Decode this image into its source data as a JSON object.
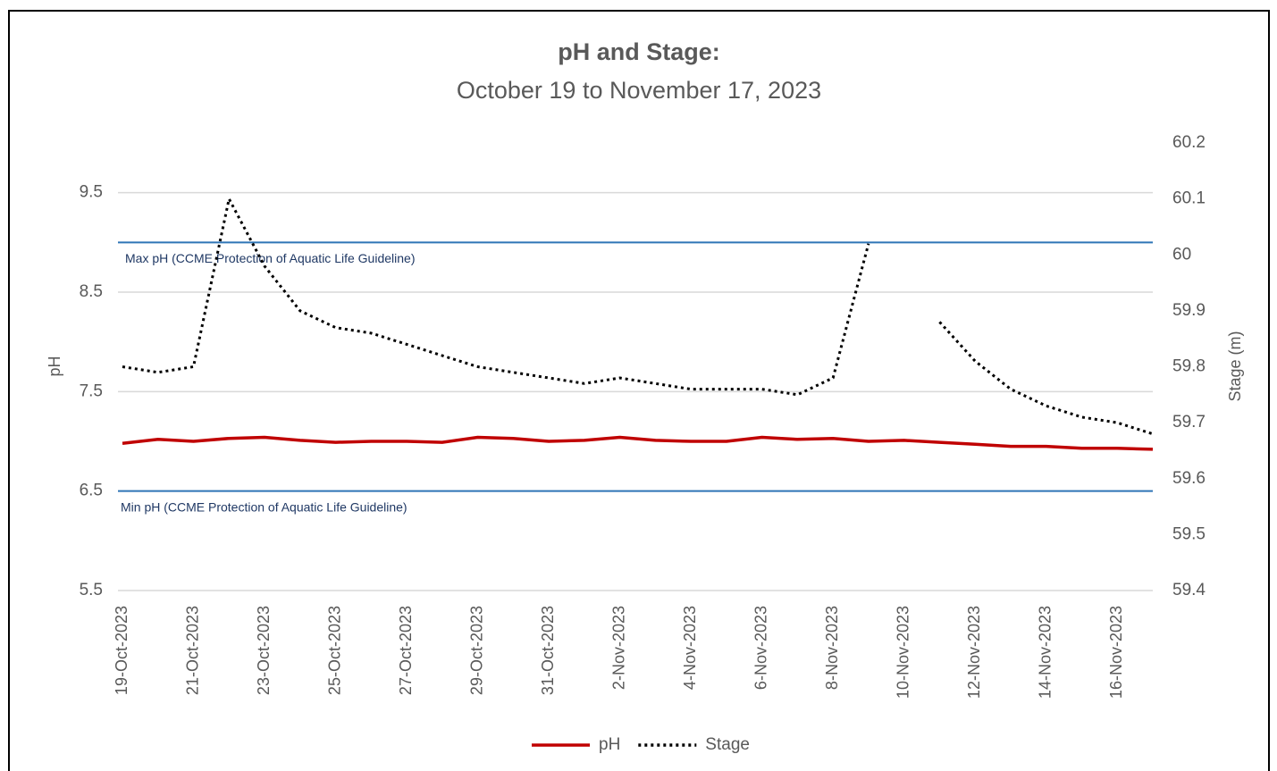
{
  "chart_data": {
    "type": "line",
    "title": "pH and Stage:",
    "subtitle": "October 19 to November 17, 2023",
    "y_label": "pH",
    "y2_label": "Stage (m)",
    "categories": [
      "19-Oct-2023",
      null,
      "21-Oct-2023",
      null,
      "23-Oct-2023",
      null,
      "25-Oct-2023",
      null,
      "27-Oct-2023",
      null,
      "29-Oct-2023",
      null,
      "31-Oct-2023",
      null,
      "2-Nov-2023",
      null,
      "4-Nov-2023",
      null,
      "6-Nov-2023",
      null,
      "8-Nov-2023",
      null,
      "10-Nov-2023",
      null,
      "12-Nov-2023",
      null,
      "14-Nov-2023",
      null,
      "16-Nov-2023",
      null
    ],
    "series": [
      {
        "name": "pH",
        "color": "#c00000",
        "axis": "y",
        "line_style": "solid",
        "values": [
          6.98,
          7.02,
          7.0,
          7.03,
          7.04,
          7.01,
          6.99,
          7.0,
          7.0,
          6.99,
          7.04,
          7.03,
          7.0,
          7.01,
          7.04,
          7.01,
          7.0,
          7.0,
          7.04,
          7.02,
          7.03,
          7.0,
          7.01,
          6.99,
          6.97,
          6.95,
          6.95,
          6.93,
          6.93,
          6.92
        ]
      },
      {
        "name": "Stage",
        "color": "#000000",
        "axis": "y2",
        "line_style": "dotted",
        "values": [
          59.8,
          59.79,
          59.8,
          60.1,
          59.98,
          59.9,
          59.87,
          59.86,
          59.84,
          59.82,
          59.8,
          59.79,
          59.78,
          59.77,
          59.78,
          59.77,
          59.76,
          59.76,
          59.76,
          59.75,
          59.78,
          60.02,
          null,
          59.88,
          59.81,
          59.76,
          59.73,
          59.71,
          59.7,
          59.68
        ]
      }
    ],
    "ylim": [
      5.5,
      10
    ],
    "yticks": [
      5.5,
      6.5,
      7.5,
      8.5,
      9.5
    ],
    "y2lim": [
      59.4,
      60.2
    ],
    "y2ticks": [
      59.4,
      59.5,
      59.6,
      59.7,
      59.8,
      59.9,
      60,
      60.1,
      60.2
    ],
    "grid": true,
    "legend": "bottom",
    "annotations": [
      {
        "label": "Max pH (CCME Protection of Aquatic Life Guideline)",
        "value": 9,
        "color": "#2e75b6"
      },
      {
        "label": "Min pH (CCME Protection of Aquatic Life Guideline)",
        "value": 6.5,
        "color": "#2e75b6"
      }
    ]
  }
}
